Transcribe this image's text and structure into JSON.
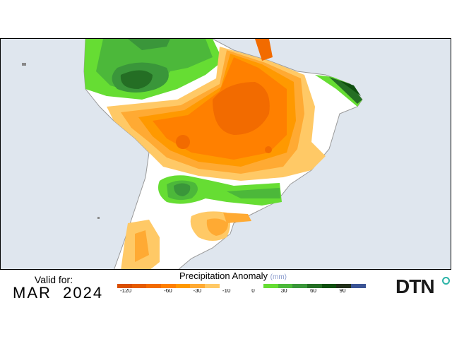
{
  "map": {
    "type": "precipitation-anomaly",
    "region": "South America",
    "ocean_color": "#dfe6ee",
    "land_neutral_color": "#ffffff",
    "border_color": "#999999"
  },
  "footer": {
    "valid_label": "Valid for:",
    "valid_date": "MAR  2024",
    "legend_title": "Precipitation Anomaly",
    "legend_unit": "(mm)",
    "logo_text": "DTN",
    "logo_icon": "circle-dot-icon"
  },
  "legend": {
    "swatches": [
      {
        "color": "#d94f00",
        "label": "-120"
      },
      {
        "color": "#e65c00"
      },
      {
        "color": "#f26b00"
      },
      {
        "color": "#ff8000",
        "label": "-60"
      },
      {
        "color": "#ff9900"
      },
      {
        "color": "#ffaa33",
        "label": "-30"
      },
      {
        "color": "#ffc966"
      },
      {
        "color": "#ffffff",
        "label": "-10"
      },
      {
        "color": "#ffffff"
      },
      {
        "color": "#ffffff",
        "label": "0"
      },
      {
        "color": "#66dd33"
      },
      {
        "color": "#4cb83a",
        "label": "30"
      },
      {
        "color": "#3a963a"
      },
      {
        "color": "#246e24",
        "label": "60"
      },
      {
        "color": "#0f4f0f"
      },
      {
        "color": "#22301a",
        "label": "90"
      },
      {
        "color": "#3b5495"
      }
    ],
    "tick_labels": [
      "-120",
      "-60",
      "-30",
      "-10",
      "0",
      "30",
      "60",
      "90"
    ]
  },
  "colors": {
    "dry_extreme": "#f26b00",
    "dry_strong": "#ff8000",
    "dry_moderate": "#ffaa33",
    "dry_light": "#ffc966",
    "wet_light": "#66dd33",
    "wet_moderate": "#4cb83a",
    "wet_strong": "#3a963a",
    "wet_heavy": "#246e24",
    "wet_extreme": "#0f4f0f"
  }
}
